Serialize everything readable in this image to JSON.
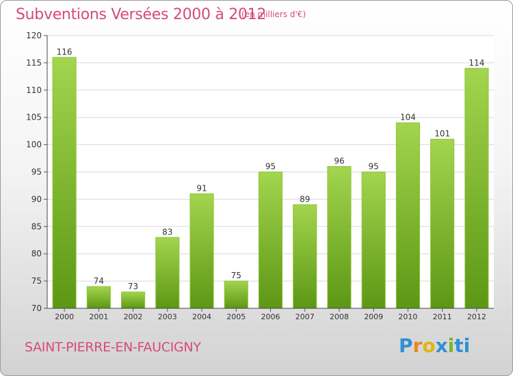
{
  "header": {
    "title": "Subventions Versées 2000 à 2012",
    "unit": "(en milliers d'€)"
  },
  "footer": {
    "commune": "SAINT-PIERRE-EN-FAUCIGNY",
    "logo_letters": [
      "P",
      "r",
      "o",
      "x",
      "i",
      "ti"
    ]
  },
  "colors": {
    "accent": "#d64a78",
    "bar_light": "#9fd24a",
    "bar_dark": "#5f9a16",
    "grid": "#d8d8d8"
  },
  "chart_data": {
    "type": "bar",
    "title": "Subventions Versées 2000 à 2012",
    "subtitle": "(en milliers d'€)",
    "categories": [
      "2000",
      "2001",
      "2002",
      "2003",
      "2004",
      "2005",
      "2006",
      "2007",
      "2008",
      "2009",
      "2010",
      "2011",
      "2012"
    ],
    "values": [
      116,
      74,
      73,
      83,
      91,
      75,
      95,
      89,
      96,
      95,
      104,
      101,
      114
    ],
    "ylim": [
      70,
      120
    ],
    "yticks": [
      70,
      75,
      80,
      85,
      90,
      95,
      100,
      105,
      110,
      115,
      120
    ],
    "grid": true,
    "legend": "none"
  }
}
